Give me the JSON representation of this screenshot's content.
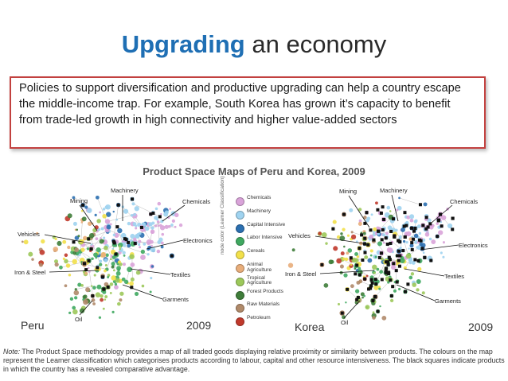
{
  "slide": {
    "title_accent": "Upgrading",
    "title_rest": "an economy",
    "body": "Policies to support diversification and productive upgrading can help a country escape the middle-income trap. For example, South Korea has grown it’s capacity to benefit from trade-led growth in high connectivity and higher value-added sectors"
  },
  "figure": {
    "title": "Product Space Maps of Peru and Korea, 2009",
    "left_map": {
      "country": "Peru",
      "year": "2009",
      "labels": [
        "Mining",
        "Machinery",
        "Chemicals",
        "Vehicles",
        "Electronics",
        "Iron & Steel",
        "Textiles",
        "Garments",
        "Oil"
      ]
    },
    "right_map": {
      "country": "Korea",
      "year": "2009",
      "labels": [
        "Mining",
        "Machinery",
        "Chemicals",
        "Vehicles",
        "Electronics",
        "Iron & Steel",
        "Textiles",
        "Garments",
        "Oil"
      ]
    },
    "legend_title": "node color (Leamer Classification)",
    "legend": [
      {
        "label": "Chemicals",
        "color": "#d9a3d9"
      },
      {
        "label": "Machinery",
        "color": "#9fd3f0"
      },
      {
        "label": "Capital Intensive",
        "color": "#2b6fb0"
      },
      {
        "label": "Labor Intensive",
        "color": "#3fa860"
      },
      {
        "label": "Cereals",
        "color": "#f2e04a"
      },
      {
        "label": "Animal Agriculture",
        "color": "#e8ad7a"
      },
      {
        "label": "Tropical Agriculture",
        "color": "#9cc85a"
      },
      {
        "label": "Forest Products",
        "color": "#3f7d3a"
      },
      {
        "label": "Raw Materials",
        "color": "#b08a6a"
      },
      {
        "label": "Petroleum",
        "color": "#c0392b"
      }
    ],
    "note_label": "Note:",
    "note": "The Product Space methodology provides a map of all traded goods displaying relative proximity or similarity between products. The colours on the map represent the Leamer classification which categorises products according to labour, capital and other resource intensiveness. The black squares indicate products in which the country has a revealed comparative advantage."
  }
}
